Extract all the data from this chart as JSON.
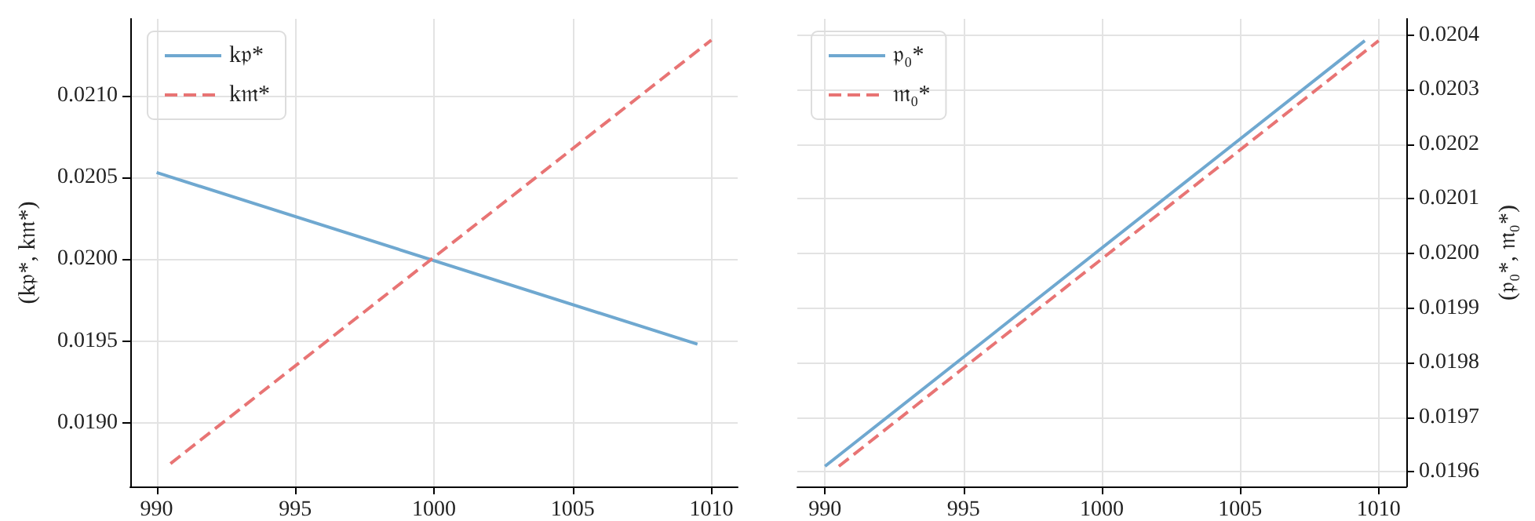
{
  "chart_data": [
    {
      "type": "line",
      "ylabel": "(k𝔭*, k𝔪*)",
      "xlim": [
        989.05,
        1010.95
      ],
      "xticks": [
        990,
        995,
        1000,
        1005,
        1010
      ],
      "ylim": [
        0.01861,
        0.02147
      ],
      "yticks": [
        {
          "value": 0.019,
          "label": "0.0190"
        },
        {
          "value": 0.0195,
          "label": "0.0195"
        },
        {
          "value": 0.02,
          "label": "0.0200"
        },
        {
          "value": 0.0205,
          "label": "0.0205"
        },
        {
          "value": 0.021,
          "label": "0.0210"
        }
      ],
      "grid": true,
      "legend": "top left",
      "marker": "none",
      "series": [
        {
          "name": "k𝔭*",
          "color": "#6fa8d0",
          "line_style": "solid",
          "x": [
            990,
            1009.5
          ],
          "values": [
            0.02053,
            0.01948
          ]
        },
        {
          "name": "k𝔪*",
          "color": "#e87474",
          "line_style": "dashed",
          "x": [
            990.5,
            1010
          ],
          "values": [
            0.01875,
            0.02134
          ]
        }
      ]
    },
    {
      "type": "line",
      "y2label": "(𝔭₀*, 𝔪₀*)",
      "xlim": [
        989.0,
        1011.0
      ],
      "xticks": [
        990,
        995,
        1000,
        1005,
        1010
      ],
      "y2lim": [
        0.019573,
        0.02043
      ],
      "y2ticks": [
        0.0196,
        0.0197,
        0.0198,
        0.0199,
        {
          "value": 0.02,
          "label": "0.0200"
        },
        0.0201,
        0.0202,
        0.0203,
        0.0204
      ],
      "grid": true,
      "legend": "top left",
      "marker": "none",
      "series": [
        {
          "name": "𝔭₀*",
          "color": "#6fa8d0",
          "line_style": "solid",
          "axis": "y2",
          "x": [
            990,
            1009.5
          ],
          "values": [
            0.01961,
            0.02039
          ]
        },
        {
          "name": "𝔪₀*",
          "color": "#e87474",
          "line_style": "dashed",
          "axis": "y2",
          "x": [
            990.5,
            1010
          ],
          "values": [
            0.01961,
            0.02039
          ]
        }
      ]
    }
  ]
}
